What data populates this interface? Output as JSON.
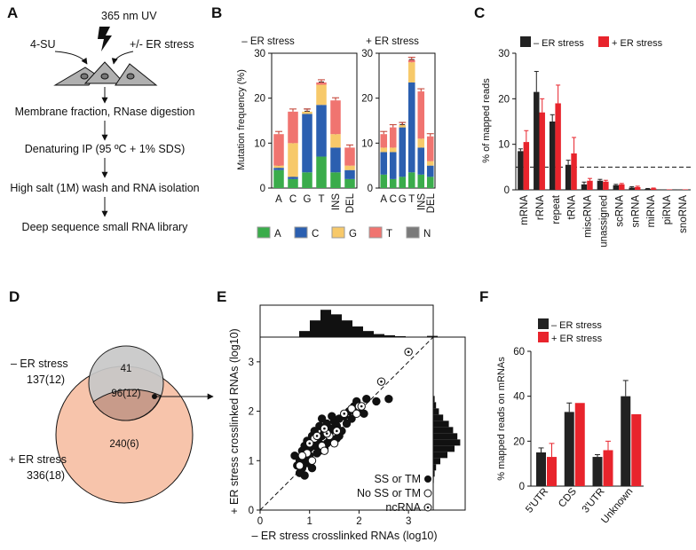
{
  "panelA": {
    "letter": "A",
    "uv": "365 nm UV",
    "su": "4-SU",
    "er": "+/- ER stress",
    "steps": [
      "Membrane fraction, RNase digestion",
      "Denaturing IP (95 ºC + 1% SDS)",
      "High salt (1M) wash and RNA isolation",
      "Deep sequence small RNA library"
    ]
  },
  "panelB": {
    "letter": "B",
    "ylabel": "Mutation frequency (%)",
    "yticks": [
      "0",
      "10",
      "20",
      "30"
    ],
    "legend": [
      {
        "name": "A",
        "color": "#3aac4b"
      },
      {
        "name": "C",
        "color": "#2b5fb0"
      },
      {
        "name": "G",
        "color": "#f7c96a"
      },
      {
        "name": "T",
        "color": "#f07470"
      },
      {
        "name": "N",
        "color": "#7a7a7a"
      }
    ]
  },
  "panelC": {
    "letter": "C",
    "ylabel": "% of mapped reads",
    "yticks": [
      "0",
      "10",
      "20",
      "30"
    ],
    "legend_minus": "– ER stress",
    "legend_plus": "+ ER stress",
    "color_minus": "#222222",
    "color_plus": "#e8242c"
  },
  "panelD": {
    "letter": "D",
    "minus_label": "– ER stress",
    "minus_total": "137(12)",
    "plus_label": "+ ER stress",
    "plus_total": "336(18)",
    "only_minus": "41",
    "overlap": "96(12)",
    "only_plus": "240(6)"
  },
  "panelE": {
    "letter": "E",
    "xticks": [
      "0",
      "1",
      "2",
      "3"
    ],
    "yticks": [
      "0",
      "1",
      "2",
      "3"
    ],
    "legend": [
      "SS or TM",
      "No SS or TM",
      "ncRNA"
    ]
  },
  "panelF": {
    "letter": "F",
    "ylabel": "% mapped reads on mRNAs",
    "yticks": [
      "0",
      "20",
      "40",
      "60"
    ],
    "legend_minus": "– ER stress",
    "legend_plus": "+ ER stress"
  },
  "chart_data": [
    {
      "id": "B-minus",
      "type": "bar",
      "title": "– ER stress",
      "stacked": true,
      "categories": [
        "A",
        "C",
        "G",
        "T",
        "INS",
        "DEL"
      ],
      "ylim": [
        0,
        30
      ],
      "series": [
        {
          "name": "A",
          "values": [
            4,
            2,
            3.5,
            7,
            3.5,
            2
          ]
        },
        {
          "name": "C",
          "values": [
            0.5,
            0.5,
            13,
            11.5,
            5.5,
            2
          ]
        },
        {
          "name": "G",
          "values": [
            0.5,
            7.5,
            0.5,
            4.5,
            3,
            1
          ]
        },
        {
          "name": "T",
          "values": [
            7,
            7,
            0,
            0.5,
            7.5,
            4
          ]
        },
        {
          "name": "N",
          "values": [
            0,
            0,
            0,
            0,
            0,
            0
          ]
        }
      ],
      "totals": [
        12,
        17,
        17,
        23.5,
        19.5,
        9
      ]
    },
    {
      "id": "B-plus",
      "type": "bar",
      "title": "+ ER stress",
      "stacked": true,
      "categories": [
        "A",
        "C",
        "G",
        "T",
        "INS",
        "DEL"
      ],
      "ylim": [
        0,
        30
      ],
      "series": [
        {
          "name": "A",
          "values": [
            3,
            2,
            2.5,
            3.5,
            3,
            2.5
          ]
        },
        {
          "name": "C",
          "values": [
            5,
            6,
            11,
            20,
            6,
            2.5
          ]
        },
        {
          "name": "G",
          "values": [
            1,
            1,
            0.5,
            4.5,
            2,
            1
          ]
        },
        {
          "name": "T",
          "values": [
            3,
            4.5,
            0,
            0.5,
            10.5,
            5.5
          ]
        },
        {
          "name": "N",
          "values": [
            0,
            0,
            0,
            0,
            0,
            0
          ]
        }
      ],
      "totals": [
        12,
        13.5,
        14,
        28.5,
        21.5,
        11.5
      ]
    },
    {
      "id": "C",
      "type": "bar",
      "categories": [
        "mRNA",
        "rRNA",
        "repeat",
        "tRNA",
        "miscRNA",
        "unassigned",
        "scRNA",
        "snRNA",
        "miRNA",
        "piRNA",
        "snoRNA"
      ],
      "ylabel": "% of mapped reads",
      "ylim": [
        0,
        30
      ],
      "reference_line": 5,
      "series": [
        {
          "name": "– ER stress",
          "values": [
            8.5,
            21.5,
            15,
            5.5,
            1.2,
            2,
            1,
            0.5,
            0.2,
            0.1,
            0.1
          ],
          "errors": [
            0.5,
            4.5,
            1.5,
            1,
            0.5,
            0.3,
            0.2,
            0.2,
            0.1,
            0,
            0
          ]
        },
        {
          "name": "+ ER stress",
          "values": [
            10.5,
            17,
            19,
            8,
            2,
            1.8,
            1.2,
            0.6,
            0.3,
            0.1,
            0.1
          ],
          "errors": [
            2.5,
            3,
            4,
            3.5,
            0.5,
            0.3,
            0.2,
            0.2,
            0.1,
            0,
            0
          ]
        }
      ]
    },
    {
      "id": "E",
      "type": "scatter",
      "xlabel": "– ER stress crosslinked RNAs (log10)",
      "ylabel": "+ ER stress crosslinked RNAs (log10)",
      "xlim": [
        0,
        3.5
      ],
      "ylim": [
        0,
        3.5
      ],
      "series": [
        {
          "name": "SS or TM",
          "points": [
            [
              0.75,
              0.9
            ],
            [
              0.8,
              1.0
            ],
            [
              0.8,
              0.75
            ],
            [
              0.85,
              1.2
            ],
            [
              0.85,
              0.85
            ],
            [
              0.9,
              1.05
            ],
            [
              0.9,
              1.3
            ],
            [
              0.95,
              0.95
            ],
            [
              0.95,
              1.4
            ],
            [
              1.0,
              1.1
            ],
            [
              1.0,
              1.25
            ],
            [
              1.05,
              1.5
            ],
            [
              1.05,
              0.85
            ],
            [
              1.1,
              1.3
            ],
            [
              1.1,
              1.6
            ],
            [
              1.15,
              1.15
            ],
            [
              1.15,
              1.45
            ],
            [
              1.2,
              1.35
            ],
            [
              1.2,
              1.7
            ],
            [
              1.25,
              1.5
            ],
            [
              1.3,
              1.25
            ],
            [
              1.3,
              1.6
            ],
            [
              1.35,
              1.75
            ],
            [
              1.4,
              1.4
            ],
            [
              1.4,
              1.55
            ],
            [
              1.45,
              1.65
            ],
            [
              1.5,
              1.8
            ],
            [
              1.55,
              1.45
            ],
            [
              1.55,
              1.7
            ],
            [
              1.6,
              1.85
            ],
            [
              1.65,
              1.6
            ],
            [
              1.7,
              1.9
            ],
            [
              1.75,
              1.75
            ],
            [
              1.8,
              2.0
            ],
            [
              1.85,
              1.85
            ],
            [
              1.9,
              2.1
            ],
            [
              1.95,
              2.2
            ],
            [
              2.0,
              2.05
            ],
            [
              2.1,
              1.95
            ],
            [
              2.15,
              2.25
            ],
            [
              2.35,
              2.2
            ],
            [
              2.6,
              2.25
            ],
            [
              0.7,
              1.1
            ],
            [
              0.9,
              0.7
            ],
            [
              1.2,
              1.2
            ],
            [
              1.0,
              1.0
            ],
            [
              1.35,
              1.35
            ],
            [
              1.45,
              1.9
            ],
            [
              1.6,
              1.5
            ],
            [
              1.25,
              1.85
            ]
          ]
        },
        {
          "name": "No SS or TM",
          "points": [
            [
              0.8,
              0.9
            ],
            [
              0.95,
              1.15
            ],
            [
              1.05,
              1.0
            ],
            [
              1.1,
              1.45
            ],
            [
              1.25,
              1.3
            ],
            [
              1.4,
              1.5
            ],
            [
              1.5,
              1.35
            ],
            [
              1.85,
              2.05
            ],
            [
              1.95,
              1.95
            ],
            [
              2.0,
              2.1
            ],
            [
              0.85,
              1.1
            ],
            [
              1.3,
              1.2
            ]
          ]
        },
        {
          "name": "ncRNA",
          "points": [
            [
              3.0,
              3.2
            ],
            [
              2.45,
              2.6
            ],
            [
              1.0,
              1.35
            ],
            [
              1.15,
              1.5
            ],
            [
              1.35,
              1.55
            ],
            [
              1.55,
              1.6
            ],
            [
              1.7,
              1.95
            ],
            [
              1.3,
              1.65
            ],
            [
              2.05,
              2.1
            ]
          ]
        }
      ],
      "hist_top": [
        0.2,
        0.55,
        0.9,
        0.75,
        0.55,
        0.35,
        0.2,
        0.1,
        0.06,
        0.03,
        0.01,
        0,
        0.04
      ],
      "hist_right": [
        0.02,
        0.05,
        0.1,
        0.25,
        0.5,
        0.75,
        0.95,
        0.85,
        0.7,
        0.55,
        0.35,
        0.2,
        0.1,
        0.05
      ]
    },
    {
      "id": "F",
      "type": "bar",
      "categories": [
        "5'UTR",
        "CDS",
        "3'UTR",
        "Unknown"
      ],
      "ylabel": "% mapped reads on mRNAs",
      "ylim": [
        0,
        60
      ],
      "series": [
        {
          "name": "– ER stress",
          "values": [
            15,
            33,
            13,
            40
          ],
          "errors": [
            2,
            4,
            1,
            7
          ]
        },
        {
          "name": "+ ER stress",
          "values": [
            13,
            37,
            16,
            32
          ],
          "errors": [
            6,
            0,
            4,
            0
          ]
        }
      ]
    }
  ]
}
